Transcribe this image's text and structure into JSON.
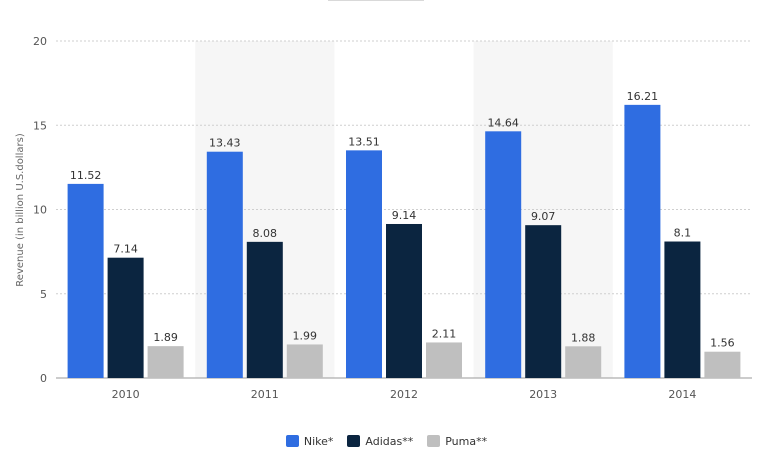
{
  "chart_data": {
    "type": "bar",
    "title": "",
    "xlabel": "",
    "ylabel": "Revenue (in billion U.S.dollars)",
    "ylim": [
      0,
      20
    ],
    "yticks": [
      0,
      5,
      10,
      15,
      20
    ],
    "grid": true,
    "legend_position": "bottom",
    "categories": [
      "2010",
      "2011",
      "2012",
      "2013",
      "2014"
    ],
    "series": [
      {
        "name": "Nike*",
        "color": "#2f6de1",
        "values": [
          11.52,
          13.43,
          13.51,
          14.64,
          16.21
        ]
      },
      {
        "name": "Adidas**",
        "color": "#0b2540",
        "values": [
          7.14,
          8.08,
          9.14,
          9.07,
          8.1
        ]
      },
      {
        "name": "Puma**",
        "color": "#bfbfbf",
        "values": [
          1.89,
          1.99,
          2.11,
          1.88,
          1.56
        ]
      }
    ]
  }
}
